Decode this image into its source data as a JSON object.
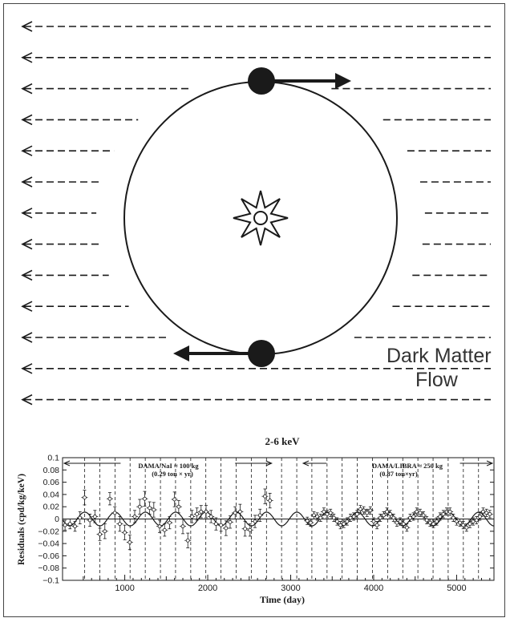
{
  "colors": {
    "ink": "#1a1a1a",
    "text": "#333333",
    "background": "#ffffff"
  },
  "diagram": {
    "flow_label_line1": "Dark Matter",
    "flow_label_line2": "Flow",
    "flow_arrow_count": 13,
    "icons": [
      "sun-icon",
      "earth-icon",
      "velocity-arrow-icon",
      "flow-arrow-icon"
    ]
  },
  "chart_data": {
    "type": "scatter",
    "title": "2-6 keV",
    "xlabel": "Time (day)",
    "ylabel": "Residuals (cpd/kg/keV)",
    "xlim": [
      250,
      5450
    ],
    "ylim": [
      -0.1,
      0.1
    ],
    "xticks": [
      1000,
      2000,
      3000,
      4000,
      5000
    ],
    "yticks": [
      -0.1,
      -0.08,
      -0.06,
      -0.04,
      -0.02,
      0,
      0.02,
      0.04,
      0.06,
      0.08,
      0.1
    ],
    "ytick_labels": [
      "−0.1",
      "−0.08",
      "−0.06",
      "−0.04",
      "−0.02",
      "0",
      "0.02",
      "0.04",
      "0.06",
      "0.08",
      "0.1"
    ],
    "grid": false,
    "annotations": {
      "dama_nai_line1": "DAMA/NaI ≈ 100 kg",
      "dama_nai_line2": "(0.29 ton × yr)",
      "dama_libra_line1": "DAMA/LIBRA ≈ 250 kg",
      "dama_libra_line2": "(0.87 ton×yr)"
    },
    "ranges": {
      "dama_nai": [
        250,
        2770
      ],
      "dama_libra": [
        3150,
        5450
      ]
    },
    "model": {
      "amplitude": 0.0112,
      "period_days": 365.25,
      "phase_day": 152.5
    },
    "annual_boundaries": [
      517,
      700,
      882,
      1064,
      1247,
      1430,
      1612,
      1795,
      1977,
      2160,
      2342,
      2525,
      2708,
      2890,
      3073,
      3255,
      3438,
      3620,
      3803,
      3985,
      4168,
      4351,
      4533,
      4716,
      4898,
      5081,
      5264
    ],
    "series": [
      {
        "x": [
          280,
          340,
          400,
          460,
          515,
          580,
          640,
          700,
          760,
          820,
          880,
          940,
          1000,
          1060,
          1120,
          1180,
          1240,
          1300,
          1350,
          1420,
          1480,
          1540,
          1600,
          1650,
          1700,
          1760,
          1810,
          1870,
          1920,
          1980,
          2040,
          2100,
          2160,
          2220,
          2270,
          2330,
          2390,
          2450,
          2510,
          2570,
          2630,
          2690,
          2750
        ],
        "y": [
          -0.01,
          -0.008,
          -0.012,
          0.002,
          0.035,
          -0.002,
          0.004,
          -0.025,
          -0.02,
          0.033,
          0.01,
          -0.008,
          -0.022,
          -0.038,
          0.004,
          0.02,
          0.033,
          0.018,
          0.015,
          -0.012,
          -0.018,
          -0.006,
          0.032,
          0.02,
          -0.012,
          -0.035,
          0.004,
          0.008,
          0.012,
          0.012,
          0.004,
          -0.008,
          -0.01,
          -0.015,
          -0.005,
          0.01,
          0.012,
          -0.016,
          -0.018,
          -0.004,
          0.006,
          0.037,
          0.03
        ],
        "err": [
          0.008,
          0.008,
          0.008,
          0.01,
          0.012,
          0.01,
          0.01,
          0.01,
          0.012,
          0.01,
          0.01,
          0.012,
          0.012,
          0.012,
          0.01,
          0.012,
          0.012,
          0.01,
          0.012,
          0.01,
          0.01,
          0.01,
          0.012,
          0.01,
          0.012,
          0.012,
          0.01,
          0.01,
          0.01,
          0.01,
          0.01,
          0.01,
          0.01,
          0.012,
          0.01,
          0.01,
          0.012,
          0.012,
          0.01,
          0.01,
          0.01,
          0.012,
          0.012
        ]
      },
      {
        "x": [
          3200,
          3240,
          3280,
          3320,
          3360,
          3400,
          3440,
          3480,
          3520,
          3560,
          3600,
          3640,
          3680,
          3720,
          3760,
          3800,
          3840,
          3880,
          3920,
          3960,
          4000,
          4040,
          4080,
          4120,
          4160,
          4200,
          4240,
          4280,
          4320,
          4360,
          4400,
          4440,
          4480,
          4520,
          4560,
          4600,
          4640,
          4680,
          4720,
          4760,
          4800,
          4840,
          4880,
          4920,
          4960,
          5000,
          5040,
          5080,
          5120,
          5160,
          5200,
          5240,
          5280,
          5320,
          5360,
          5400
        ],
        "y": [
          -0.003,
          -0.006,
          0.006,
          0.004,
          0.002,
          0.012,
          0.008,
          0.01,
          0.002,
          -0.004,
          -0.01,
          -0.008,
          -0.004,
          0.002,
          0.004,
          0.008,
          0.016,
          0.014,
          0.01,
          0.014,
          -0.004,
          -0.01,
          0.002,
          0.006,
          0.012,
          0.008,
          0.002,
          -0.006,
          -0.004,
          -0.008,
          -0.014,
          0.002,
          0.004,
          0.012,
          0.01,
          0.006,
          -0.002,
          -0.006,
          -0.008,
          -0.004,
          0.004,
          0.008,
          0.012,
          0.012,
          0.002,
          -0.004,
          -0.006,
          -0.01,
          -0.014,
          -0.008,
          -0.004,
          -0.002,
          0.004,
          0.012,
          0.01,
          0.008
        ],
        "err": [
          0.006,
          0.006,
          0.006,
          0.006,
          0.006,
          0.006,
          0.006,
          0.006,
          0.006,
          0.006,
          0.006,
          0.006,
          0.006,
          0.006,
          0.006,
          0.006,
          0.006,
          0.006,
          0.006,
          0.006,
          0.006,
          0.006,
          0.006,
          0.006,
          0.006,
          0.006,
          0.006,
          0.006,
          0.006,
          0.006,
          0.006,
          0.006,
          0.006,
          0.006,
          0.006,
          0.006,
          0.006,
          0.006,
          0.006,
          0.006,
          0.006,
          0.006,
          0.006,
          0.006,
          0.006,
          0.006,
          0.006,
          0.006,
          0.006,
          0.006,
          0.006,
          0.006,
          0.006,
          0.006,
          0.006,
          0.006
        ]
      }
    ]
  }
}
